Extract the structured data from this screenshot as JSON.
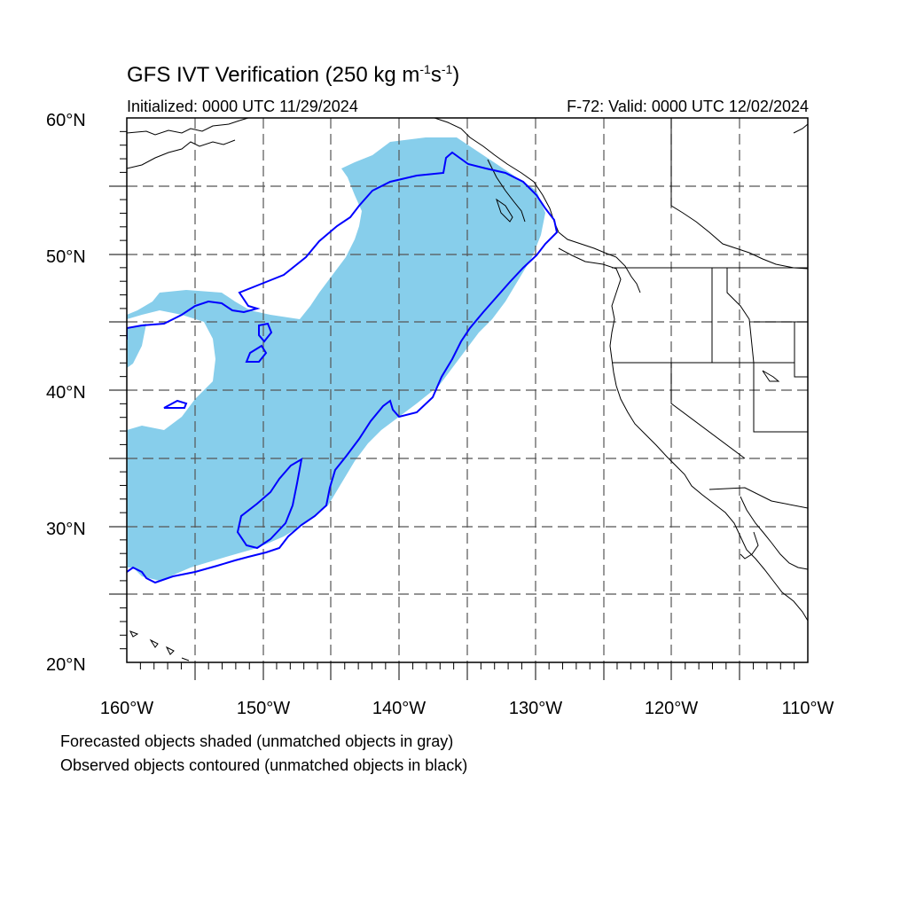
{
  "title": {
    "main": "GFS IVT Verification (250 kg m",
    "sup1": "-1",
    "mid": "s",
    "sup2": "-1",
    "end": ")"
  },
  "subtitle": {
    "left": "Initialized: 0000 UTC 11/29/2024",
    "right": "F-72: Valid: 0000 UTC 12/02/2024"
  },
  "map": {
    "lon_range": [
      -160,
      -110
    ],
    "lat_range": [
      20,
      60
    ],
    "lon_ticks": [
      {
        "value": -160,
        "label": "160°W"
      },
      {
        "value": -150,
        "label": "150°W"
      },
      {
        "value": -140,
        "label": "140°W"
      },
      {
        "value": -130,
        "label": "130°W"
      },
      {
        "value": -120,
        "label": "120°W"
      },
      {
        "value": -110,
        "label": "110°W"
      }
    ],
    "lat_ticks": [
      {
        "value": 60,
        "label": "60°N"
      },
      {
        "value": 50,
        "label": "50°N"
      },
      {
        "value": 40,
        "label": "40°N"
      },
      {
        "value": 30,
        "label": "30°N"
      },
      {
        "value": 20,
        "label": "20°N"
      }
    ],
    "grid": "dashed every 5°",
    "colors": {
      "forecast_fill": "#87ceeb",
      "observed_contour": "#0000ff",
      "coastline": "#000000",
      "grid": "#555555"
    }
  },
  "footer": {
    "line1": "Forecasted objects shaded (unmatched objects in gray)",
    "line2": "Observed objects contoured (unmatched objects in black)"
  }
}
